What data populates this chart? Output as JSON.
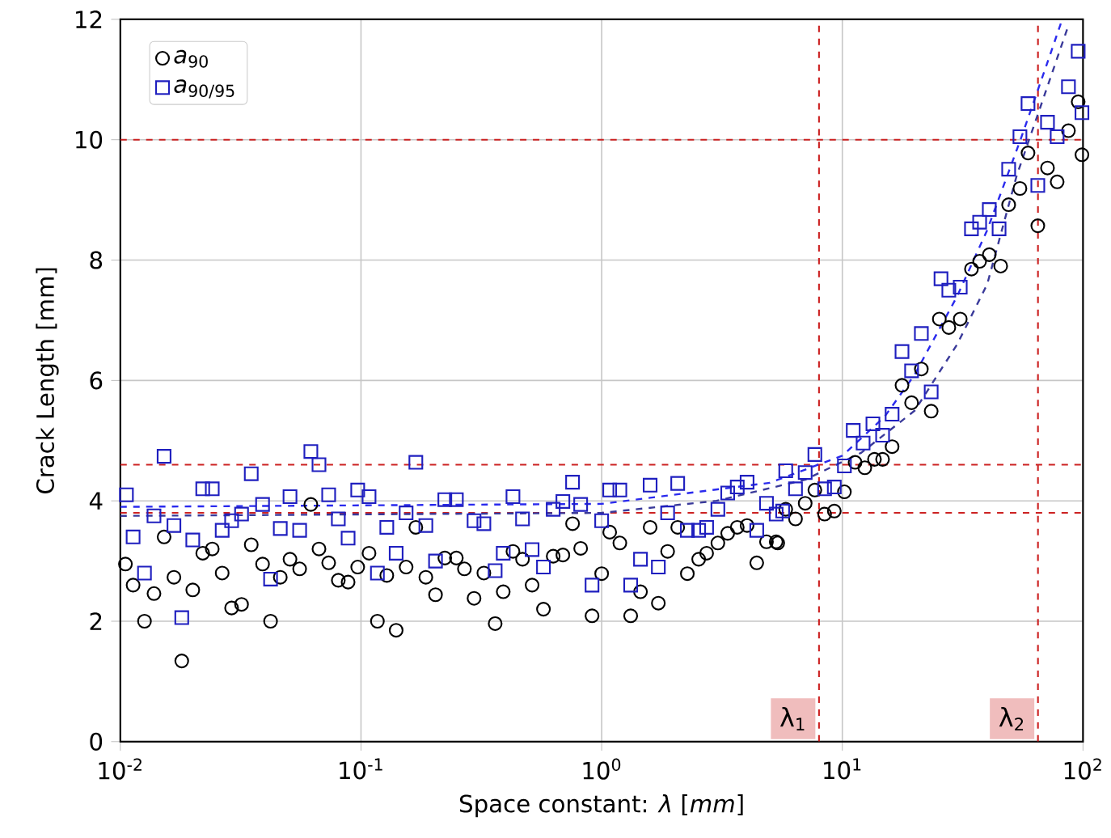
{
  "chart_data": {
    "type": "scatter",
    "xlabel": "Space constant: *λ* [*mm*]",
    "ylabel": "Crack Length [mm]",
    "log": "x",
    "grid": true,
    "legend": "top left",
    "xlim": [
      0.01,
      100
    ],
    "ylim": [
      0,
      12
    ],
    "xticks": [
      {
        "value": 0.01,
        "label": "10$^{-2}$"
      },
      {
        "value": 0.1,
        "label": "10$^{-1}$"
      },
      {
        "value": 1,
        "label": "10$^{0}$"
      },
      {
        "value": 10,
        "label": "10$^{1}$"
      },
      {
        "value": 100,
        "label": "10$^{2}$"
      }
    ],
    "yticks": [
      0,
      2,
      4,
      6,
      8,
      10,
      12
    ],
    "series": [
      {
        "name": "*a*$_{90}$",
        "marker": "circle",
        "color": "#000000",
        "x": [
          0.0105,
          0.0113,
          0.0126,
          0.0138,
          0.0152,
          0.0167,
          0.018,
          0.02,
          0.022,
          0.0241,
          0.0265,
          0.029,
          0.0319,
          0.035,
          0.039,
          0.0421,
          0.0462,
          0.0507,
          0.0556,
          0.0619,
          0.0669,
          0.0734,
          0.0805,
          0.0884,
          0.0969,
          0.108,
          0.117,
          0.128,
          0.14,
          0.154,
          0.169,
          0.186,
          0.204,
          0.223,
          0.249,
          0.269,
          0.295,
          0.324,
          0.361,
          0.39,
          0.428,
          0.469,
          0.514,
          0.573,
          0.629,
          0.69,
          0.757,
          0.818,
          0.912,
          1.0,
          1.08,
          1.19,
          1.32,
          1.45,
          1.59,
          1.72,
          1.88,
          2.07,
          2.27,
          2.53,
          2.73,
          3.04,
          3.34,
          3.66,
          4.02,
          4.41,
          4.84,
          5.31,
          5.39,
          5.82,
          6.39,
          7.01,
          7.69,
          8.44,
          9.26,
          10.2,
          11.3,
          12.4,
          13.6,
          14.7,
          16.1,
          17.7,
          19.4,
          21.3,
          23.4,
          25.3,
          27.7,
          30.9,
          34.4,
          37.2,
          40.8,
          45.5,
          49.1,
          54.7,
          59.1,
          64.9,
          71.2,
          78.1,
          87.0,
          95.5,
          99
        ],
        "values": [
          2.95,
          2.6,
          2.0,
          2.46,
          3.4,
          2.73,
          1.34,
          2.52,
          3.13,
          3.2,
          2.8,
          2.22,
          2.28,
          3.27,
          2.95,
          2.0,
          2.73,
          3.03,
          2.87,
          3.94,
          3.2,
          2.97,
          2.68,
          2.65,
          2.9,
          3.13,
          2.0,
          2.76,
          1.85,
          2.9,
          3.56,
          2.73,
          2.44,
          3.05,
          3.05,
          2.87,
          2.38,
          2.8,
          1.96,
          2.49,
          3.16,
          3.03,
          2.6,
          2.2,
          3.08,
          3.1,
          3.62,
          3.21,
          2.09,
          2.79,
          3.48,
          3.3,
          2.09,
          2.49,
          3.56,
          2.3,
          3.16,
          3.56,
          2.79,
          3.03,
          3.13,
          3.3,
          3.46,
          3.56,
          3.59,
          2.97,
          3.32,
          3.32,
          3.3,
          3.86,
          3.7,
          3.96,
          4.18,
          3.78,
          3.83,
          4.15,
          4.64,
          4.55,
          4.69,
          4.69,
          4.9,
          5.92,
          5.63,
          6.19,
          5.49,
          7.02,
          6.88,
          7.02,
          7.85,
          7.98,
          8.09,
          7.9,
          8.92,
          9.19,
          9.78,
          8.57,
          9.53,
          9.3,
          10.15,
          10.63,
          9.75
        ]
      },
      {
        "name": "*a*$_{90/95}$",
        "marker": "square",
        "color": "#1f1fbf",
        "x": [
          0.0106,
          0.0113,
          0.0126,
          0.0138,
          0.0152,
          0.0167,
          0.018,
          0.02,
          0.022,
          0.0241,
          0.0265,
          0.029,
          0.0319,
          0.035,
          0.039,
          0.0421,
          0.0462,
          0.0507,
          0.0556,
          0.0619,
          0.0669,
          0.0734,
          0.0805,
          0.0884,
          0.0969,
          0.108,
          0.117,
          0.128,
          0.14,
          0.154,
          0.169,
          0.186,
          0.204,
          0.223,
          0.249,
          0.295,
          0.324,
          0.361,
          0.39,
          0.428,
          0.469,
          0.514,
          0.573,
          0.629,
          0.69,
          0.757,
          0.818,
          0.912,
          1.0,
          1.08,
          1.19,
          1.32,
          1.45,
          1.59,
          1.72,
          1.88,
          2.07,
          2.27,
          2.53,
          2.73,
          3.04,
          3.34,
          3.66,
          4.02,
          4.41,
          4.84,
          5.31,
          5.65,
          5.82,
          6.39,
          7.01,
          7.69,
          8.44,
          9.26,
          10.2,
          11.1,
          12.2,
          13.4,
          14.7,
          16.1,
          17.7,
          19.4,
          21.3,
          23.4,
          25.7,
          27.7,
          30.9,
          34.4,
          37.2,
          40.8,
          44.8,
          49.1,
          54.7,
          59.1,
          64.9,
          71.2,
          78.1,
          87.0,
          95.5,
          99
        ],
        "values": [
          4.1,
          3.4,
          2.8,
          3.75,
          4.74,
          3.59,
          2.06,
          3.35,
          4.2,
          4.2,
          3.51,
          3.67,
          3.78,
          4.45,
          3.94,
          2.7,
          3.54,
          4.07,
          3.51,
          4.82,
          4.6,
          4.1,
          3.7,
          3.38,
          4.18,
          4.07,
          2.8,
          3.56,
          3.13,
          3.8,
          4.64,
          3.59,
          3.0,
          4.02,
          4.02,
          3.67,
          3.62,
          2.84,
          3.13,
          4.07,
          3.7,
          3.19,
          2.9,
          3.86,
          3.99,
          4.31,
          3.94,
          2.6,
          3.67,
          4.18,
          4.18,
          2.6,
          3.03,
          4.26,
          2.9,
          3.8,
          4.29,
          3.51,
          3.51,
          3.56,
          3.86,
          4.13,
          4.23,
          4.31,
          3.51,
          3.96,
          3.78,
          3.83,
          4.5,
          4.2,
          4.47,
          4.77,
          4.2,
          4.23,
          4.58,
          5.17,
          4.96,
          5.28,
          5.09,
          5.44,
          6.48,
          6.16,
          6.78,
          5.81,
          7.69,
          7.5,
          7.55,
          8.52,
          8.63,
          8.84,
          8.52,
          9.51,
          10.05,
          10.6,
          9.24,
          10.29,
          10.05,
          10.88,
          11.47,
          10.45
        ]
      },
      {
        "type": "line",
        "marker": "none",
        "line_style": "dashed",
        "color": "#3a3a9a",
        "x": [
          0.01,
          1,
          3,
          7,
          12,
          20,
          30,
          40,
          53,
          70,
          87
        ],
        "values": [
          3.75,
          3.8,
          4.0,
          4.35,
          4.8,
          5.5,
          6.6,
          7.6,
          9.4,
          10.8,
          11.9
        ]
      },
      {
        "type": "line",
        "marker": "none",
        "line_style": "dashed",
        "color": "#2a2aee",
        "x": [
          0.01,
          1,
          5,
          10,
          15,
          20,
          30,
          40,
          55,
          70,
          82
        ],
        "values": [
          3.9,
          3.95,
          4.3,
          4.75,
          5.4,
          6.1,
          7.4,
          8.5,
          10.0,
          11.2,
          12.0
        ]
      }
    ],
    "ref_lines": [
      {
        "axis": "y",
        "value": 10,
        "color": "#cc2222",
        "line_style": "dashed"
      },
      {
        "axis": "y",
        "value": 4.6,
        "color": "#cc2222",
        "line_style": "dashed"
      },
      {
        "axis": "y",
        "value": 3.8,
        "color": "#cc2222",
        "line_style": "dashed"
      },
      {
        "axis": "x",
        "value": 8,
        "label": "λ$_{1}$",
        "color": "#cc2222",
        "line_style": "dashed"
      },
      {
        "axis": "x",
        "value": 65,
        "label": "λ$_{2}$",
        "color": "#cc2222",
        "line_style": "dashed"
      }
    ]
  }
}
